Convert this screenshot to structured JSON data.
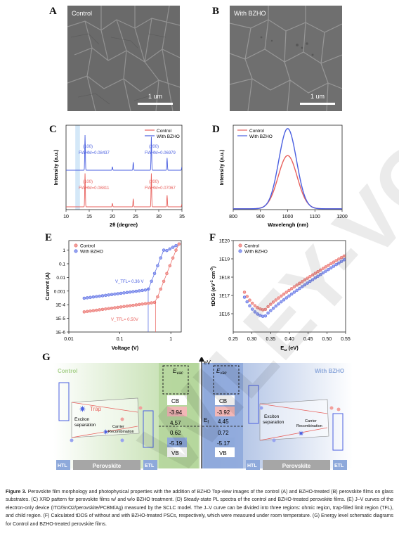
{
  "panels": {
    "a": {
      "letter": "A",
      "tag": "Control",
      "scale": "1 um"
    },
    "b": {
      "letter": "B",
      "tag": "With BZHO",
      "scale": "1 um"
    },
    "c": {
      "letter": "C"
    },
    "d": {
      "letter": "D"
    },
    "e": {
      "letter": "E"
    },
    "f": {
      "letter": "F"
    },
    "g": {
      "letter": "G"
    }
  },
  "colors": {
    "control": "#e8615d",
    "bzho": "#4a5fe0",
    "green": "#a9d18e",
    "blue": "#8ea9db"
  },
  "chart_data": [
    {
      "id": "C",
      "type": "line",
      "xlabel": "2θ (degree)",
      "ylabel": "Intensity (a.u.)",
      "xlim": [
        10,
        35
      ],
      "xticks": [
        10,
        15,
        20,
        25,
        30,
        35
      ],
      "legend": [
        "Control",
        "With BZHO"
      ],
      "legend_position": "top-right",
      "highlight_band": [
        12,
        13
      ],
      "series": [
        {
          "name": "With BZHO",
          "peaks": [
            [
              14.1,
              1.0
            ],
            [
              20.0,
              0.1
            ],
            [
              24.5,
              0.23
            ],
            [
              28.4,
              0.95
            ],
            [
              31.8,
              0.35
            ],
            [
              35.0,
              0.12
            ]
          ]
        },
        {
          "name": "Control",
          "peaks": [
            [
              14.1,
              0.95
            ],
            [
              20.0,
              0.1
            ],
            [
              24.5,
              0.23
            ],
            [
              28.4,
              0.95
            ],
            [
              31.8,
              0.33
            ],
            [
              35.0,
              0.1
            ]
          ]
        }
      ],
      "annotations": [
        {
          "series": "With BZHO",
          "peak": "(100)",
          "fwhm": "FWHM=0.08437"
        },
        {
          "series": "With BZHO",
          "peak": "(200)",
          "fwhm": "FWHM=0.06979"
        },
        {
          "series": "Control",
          "peak": "(100)",
          "fwhm": "FWHM=0.08811"
        },
        {
          "series": "Control",
          "peak": "(200)",
          "fwhm": "FWHM=0.07067"
        }
      ]
    },
    {
      "id": "D",
      "type": "line",
      "xlabel": "Wavelengh (nm)",
      "ylabel": "Intensity (a.u.)",
      "xlim": [
        800,
        1200
      ],
      "xticks": [
        800,
        900,
        1000,
        1100,
        1200
      ],
      "legend": [
        "Control",
        "With BZHO"
      ],
      "legend_position": "top-left",
      "series": [
        {
          "name": "Control",
          "center": 1000,
          "amplitude": 0.63,
          "width": 45
        },
        {
          "name": "With BZHO",
          "center": 1000,
          "amplitude": 0.95,
          "width": 42
        }
      ]
    },
    {
      "id": "E",
      "type": "scatter",
      "xlabel": "Voltage (V)",
      "ylabel": "Current (A)",
      "xscale": "log",
      "yscale": "log",
      "xlim": [
        0.01,
        1.6
      ],
      "ylim": [
        1e-06,
        5
      ],
      "xticks": [
        "0.01",
        "0.1",
        "1"
      ],
      "yticks": [
        "1E-6",
        "1E-5",
        "1E-4",
        "0.001",
        "0.01",
        "0.1",
        "1"
      ],
      "legend": [
        "Control",
        "With BZHO"
      ],
      "legend_position": "top-left",
      "annotations": [
        "V_TFL= 0.36 V",
        "V_TFL= 0.50V"
      ],
      "vtfl": {
        "With BZHO": 0.36,
        "Control": 0.5
      }
    },
    {
      "id": "F",
      "type": "scatter",
      "xlabel": "E_ω (eV)",
      "ylabel": "tDOS (eV⁻¹ cm⁻³)",
      "yscale": "log",
      "xlim": [
        0.25,
        0.55
      ],
      "ylim": [
        1000000000000000.0,
        1e+20
      ],
      "xticks": [
        "0.25",
        "0.30",
        "0.35",
        "0.40",
        "0.45",
        "0.50",
        "0.55"
      ],
      "yticks": [
        "1E16",
        "1E17",
        "1E18",
        "1E19",
        "1E20"
      ],
      "legend": [
        "Control",
        "With BZHO"
      ],
      "legend_position": "top-left",
      "series": [
        {
          "name": "Control",
          "min_at": 0.335,
          "min_value": 1.6e+16,
          "start": [
            0.28,
            1.5e+17
          ],
          "end": [
            0.55,
            1.6e+19
          ]
        },
        {
          "name": "With BZHO",
          "min_at": 0.335,
          "min_value": 7000000000000000.0,
          "start": [
            0.28,
            8e+16
          ],
          "end": [
            0.55,
            1e+19
          ]
        }
      ]
    }
  ],
  "diagram_g": {
    "control_title": "Control",
    "bzho_title": "With BZHO",
    "ev": "eV",
    "evac": "E",
    "evac_sub": "vac",
    "ef": "E",
    "ef_sub": "f",
    "cb": "CB",
    "vb": "VB",
    "control_cb": "-3.94",
    "control_gap_top": "4.57",
    "control_gap_bot": "0.62",
    "control_vb": "-5.19",
    "bzho_cb": "-3.92",
    "bzho_gap_top": "4.45",
    "bzho_gap_bot": "0.72",
    "bzho_vb": "-5.17",
    "trap": "Trap",
    "exciton": "Exciton\nseparation",
    "carrier": "Carrier\nRecombination",
    "htl": "HTL",
    "perovskite": "Perovskite",
    "etl": "ETL"
  },
  "caption": {
    "bold": "Figure 3.",
    "text": " Perovskite film morphology and photophysical properties with the addition of BZHO Top-view images of the control (A) and BZHO-treated (B) perovskite films on glass substrates. (C) XRD pattern for perovskite films w/ and w/o BZHO treatment. (D) Steady-state PL spectra of the control and BZHO-treated perovskite films. (E) J–V curves of the electron-only device (ITO/SnO2/perovskite/PCBM/Ag) measured by the SCLC model. The J–V curve can be divided into three regions: ohmic region, trap-filled limit region (TFL), and child region. (F) Calculated tDOS of without and with BZHO-treated PSCs, respectively, which were measured under room temperature. (G) Energy level schematic diagrams for Control and BZHO-treated perovskite films."
  }
}
